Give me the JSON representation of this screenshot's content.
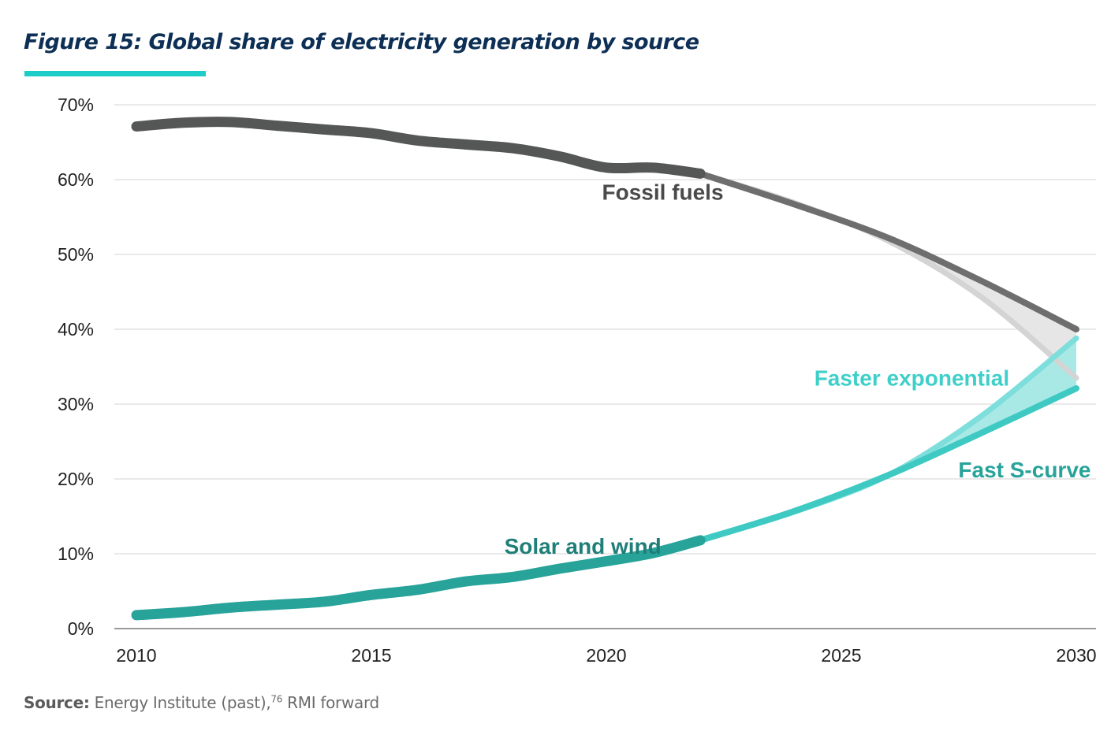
{
  "figure": {
    "title": "Figure 15: Global share of electricity generation by source",
    "source_label": "Source:",
    "source_text": " Energy Institute (past),",
    "source_footnote": "76",
    "source_text_2": " RMI forward"
  },
  "colors": {
    "title": "#0d2f55",
    "accent_bar": "#1ccdc8",
    "fossil_hist": "#555756",
    "fossil_proj": "#6e6e6e",
    "fossil_faster": "#d4d4d4",
    "fossil_band": "#e6e6e6",
    "solar_hist": "#27a39a",
    "solar_proj": "#3ec9c3",
    "solar_faster": "#7ddedb",
    "solar_band": "#a8e9e6",
    "label_solar": "#1f7f78",
    "label_faster": "#3fcfc9",
    "label_scurve": "#27a39a",
    "label_fossil": "#4a4a4a"
  },
  "chart_data": {
    "type": "line",
    "title": "Figure 15: Global share of electricity generation by source",
    "xlabel": "",
    "ylabel": "",
    "xlim": [
      2010,
      2030
    ],
    "ylim": [
      0,
      70
    ],
    "x_ticks": [
      "2010",
      "2015",
      "2020",
      "2025",
      "2030"
    ],
    "y_ticks": [
      "0%",
      "10%",
      "20%",
      "30%",
      "40%",
      "50%",
      "60%",
      "70%"
    ],
    "grid": true,
    "series": [
      {
        "name": "Fossil fuels",
        "kind": "historical",
        "x": [
          2010,
          2011,
          2012,
          2013,
          2014,
          2015,
          2016,
          2017,
          2018,
          2019,
          2020,
          2021,
          2022
        ],
        "values": [
          67.1,
          67.6,
          67.7,
          67.2,
          66.7,
          66.2,
          65.2,
          64.7,
          64.2,
          63.1,
          61.6,
          61.6,
          60.8
        ]
      },
      {
        "name": "Fossil fuels (Fast S-curve)",
        "kind": "projection",
        "x": [
          2022,
          2024,
          2026,
          2028,
          2030
        ],
        "values": [
          60.8,
          56.7,
          52.2,
          46.4,
          40.0
        ]
      },
      {
        "name": "Fossil fuels (Faster exponential)",
        "kind": "projection",
        "x": [
          2022,
          2024,
          2026,
          2028,
          2030
        ],
        "values": [
          60.8,
          56.9,
          51.8,
          44.2,
          33.5
        ]
      },
      {
        "name": "Solar and wind",
        "kind": "historical",
        "x": [
          2010,
          2011,
          2012,
          2013,
          2014,
          2015,
          2016,
          2017,
          2018,
          2019,
          2020,
          2021,
          2022
        ],
        "values": [
          1.8,
          2.2,
          2.8,
          3.2,
          3.6,
          4.5,
          5.2,
          6.3,
          6.9,
          8.0,
          9.0,
          10.1,
          11.8
        ]
      },
      {
        "name": "Fast S-curve",
        "kind": "projection",
        "x": [
          2022,
          2024,
          2026,
          2028,
          2030
        ],
        "values": [
          11.8,
          15.7,
          20.5,
          26.2,
          32.1
        ]
      },
      {
        "name": "Faster exponential",
        "kind": "projection",
        "x": [
          2022,
          2024,
          2026,
          2028,
          2030
        ],
        "values": [
          11.8,
          15.6,
          20.5,
          28.5,
          38.8
        ]
      }
    ],
    "annotations": [
      {
        "text": "Fossil fuels",
        "x": 2021.2,
        "y": 57.3
      },
      {
        "text": "Solar and wind",
        "x": 2019.5,
        "y": 10.0
      },
      {
        "text": "Faster exponential",
        "x": 2026.5,
        "y": 32.5
      },
      {
        "text": "Fast S-curve",
        "x": 2028.9,
        "y": 20.2
      }
    ]
  }
}
